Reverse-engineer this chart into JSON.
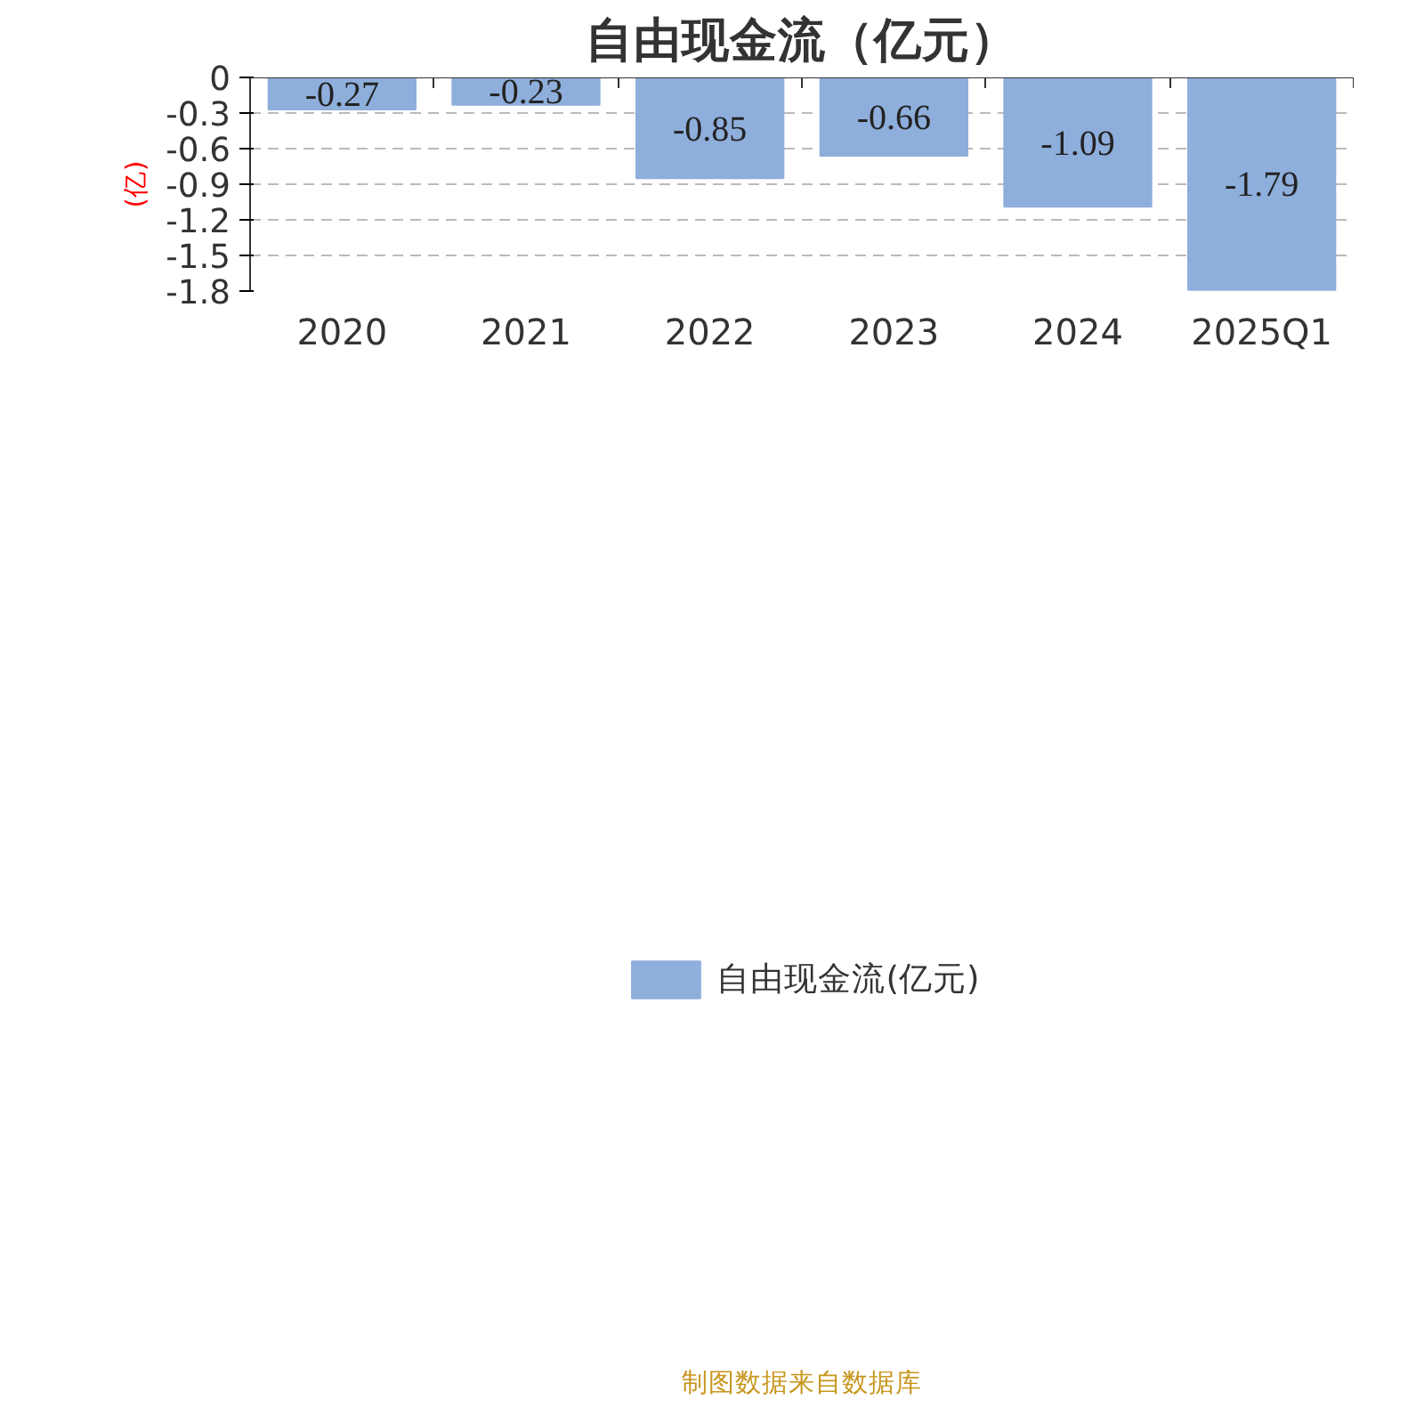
{
  "chart_data": {
    "type": "bar",
    "title": "自由现金流（亿元）",
    "ylabel": "(亿)",
    "categories": [
      "2020",
      "2021",
      "2022",
      "2023",
      "2024",
      "2025Q1"
    ],
    "series": [
      {
        "name": "自由现金流(亿元)",
        "color": "#8eaedb",
        "values": [
          -0.27,
          -0.23,
          -0.85,
          -0.66,
          -1.09,
          -1.79
        ]
      }
    ],
    "ylim": [
      -1.8,
      0
    ],
    "yticks": [
      0,
      -0.3,
      -0.6,
      -0.9,
      -1.2,
      -1.5,
      -1.8
    ],
    "grid": "y",
    "legend": "bottom",
    "data_labels": true,
    "annotations": [
      "制图数据来自数据库"
    ]
  }
}
